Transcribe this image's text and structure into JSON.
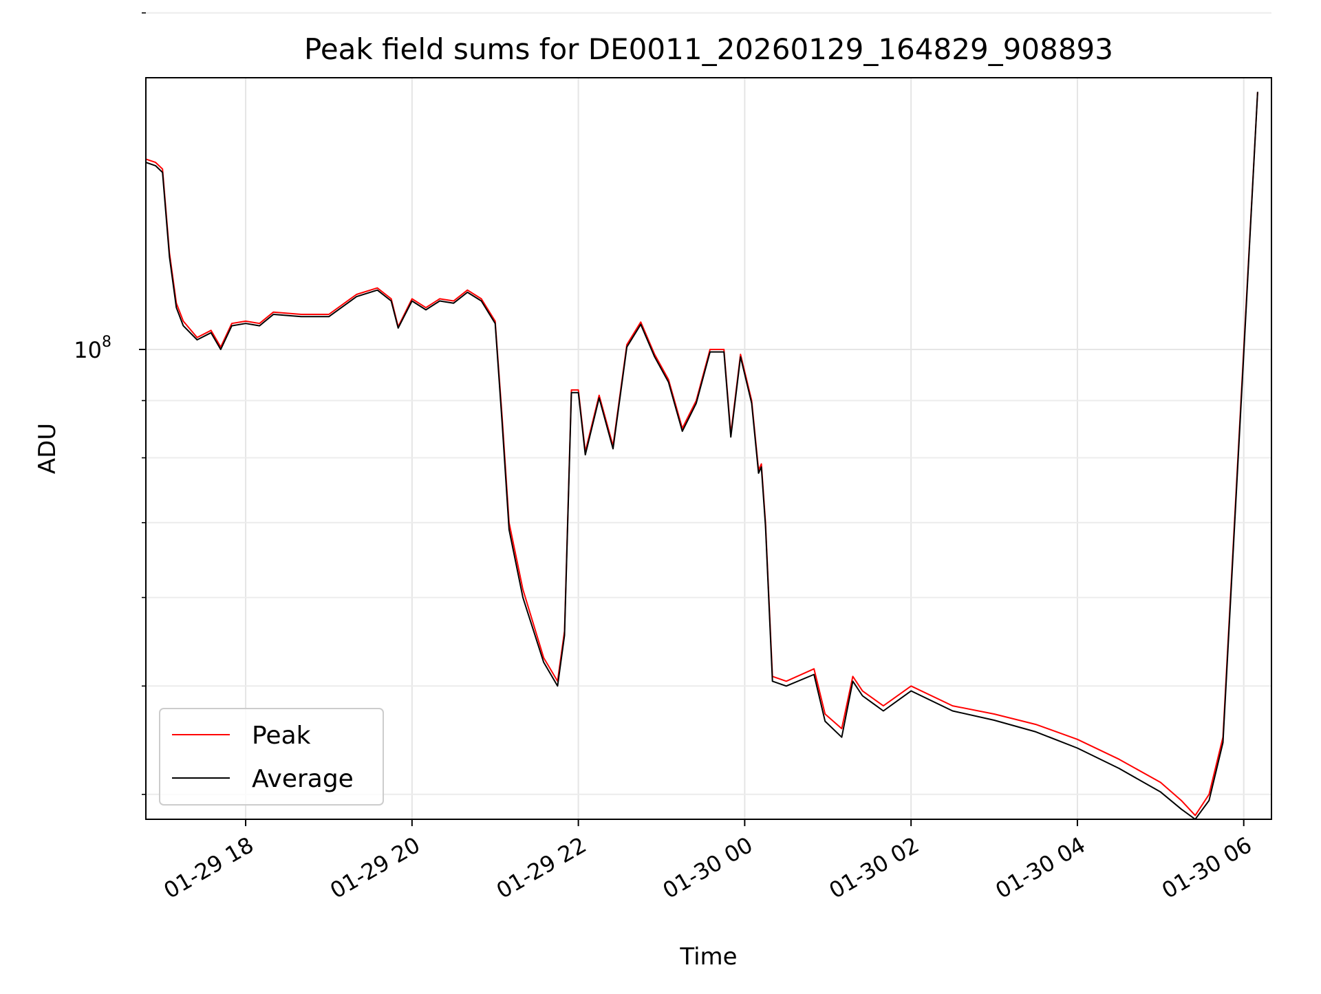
{
  "chart_data": {
    "type": "line",
    "title": "Peak field sums for DE0011_20260129_164829_908893",
    "xlabel": "Time",
    "ylabel": "ADU",
    "x_axis": "time",
    "y_scale": "log",
    "xlim": [
      "2026-01-29 16:48",
      "2026-01-30 06:20"
    ],
    "ylim": [
      38000000.0,
      175000000.0
    ],
    "x_ticks": [
      {
        "x": "2026-01-29 18:00",
        "label": "01-29 18"
      },
      {
        "x": "2026-01-29 20:00",
        "label": "01-29 20"
      },
      {
        "x": "2026-01-29 22:00",
        "label": "01-29 22"
      },
      {
        "x": "2026-01-30 00:00",
        "label": "01-30 00"
      },
      {
        "x": "2026-01-30 02:00",
        "label": "01-30 02"
      },
      {
        "x": "2026-01-30 04:00",
        "label": "01-30 04"
      },
      {
        "x": "2026-01-30 06:00",
        "label": "01-30 06"
      }
    ],
    "y_major_ticks": [
      {
        "y": 100000000,
        "label": "10",
        "exponent": "8"
      }
    ],
    "y_minor_ticks": [
      40000000,
      50000000,
      60000000,
      70000000,
      80000000,
      90000000,
      200000000
    ],
    "grid": true,
    "legend": {
      "position": "lower-left"
    },
    "series": [
      {
        "name": "Peak",
        "color": "#ff0000",
        "points": [
          [
            "2026-01-29 16:48",
            148000000.0
          ],
          [
            "2026-01-29 16:55",
            147000000.0
          ],
          [
            "2026-01-29 17:00",
            145000000.0
          ],
          [
            "2026-01-29 17:05",
            122000000.0
          ],
          [
            "2026-01-29 17:10",
            110000000.0
          ],
          [
            "2026-01-29 17:15",
            106000000.0
          ],
          [
            "2026-01-29 17:25",
            102500000.0
          ],
          [
            "2026-01-29 17:35",
            104000000.0
          ],
          [
            "2026-01-29 17:42",
            100500000.0
          ],
          [
            "2026-01-29 17:50",
            105500000.0
          ],
          [
            "2026-01-29 18:00",
            106000000.0
          ],
          [
            "2026-01-29 18:10",
            105500000.0
          ],
          [
            "2026-01-29 18:20",
            108000000.0
          ],
          [
            "2026-01-29 18:40",
            107500000.0
          ],
          [
            "2026-01-29 19:00",
            107500000.0
          ],
          [
            "2026-01-29 19:20",
            112000000.0
          ],
          [
            "2026-01-29 19:35",
            113500000.0
          ],
          [
            "2026-01-29 19:45",
            111000000.0
          ],
          [
            "2026-01-29 19:50",
            104800000.0
          ],
          [
            "2026-01-29 20:00",
            111000000.0
          ],
          [
            "2026-01-29 20:10",
            109000000.0
          ],
          [
            "2026-01-29 20:20",
            111000000.0
          ],
          [
            "2026-01-29 20:30",
            110500000.0
          ],
          [
            "2026-01-29 20:40",
            113000000.0
          ],
          [
            "2026-01-29 20:50",
            111000000.0
          ],
          [
            "2026-01-29 21:00",
            106000000.0
          ],
          [
            "2026-01-29 21:05",
            87000000.0
          ],
          [
            "2026-01-29 21:10",
            70000000.0
          ],
          [
            "2026-01-29 21:20",
            61000000.0
          ],
          [
            "2026-01-29 21:35",
            53000000.0
          ],
          [
            "2026-01-29 21:45",
            50500000.0
          ],
          [
            "2026-01-29 21:50",
            56000000.0
          ],
          [
            "2026-01-29 21:55",
            92000000.0
          ],
          [
            "2026-01-29 22:00",
            92000000.0
          ],
          [
            "2026-01-29 22:05",
            81000000.0
          ],
          [
            "2026-01-29 22:15",
            91000000.0
          ],
          [
            "2026-01-29 22:25",
            82000000.0
          ],
          [
            "2026-01-29 22:35",
            101000000.0
          ],
          [
            "2026-01-29 22:45",
            105800000.0
          ],
          [
            "2026-01-29 22:55",
            99000000.0
          ],
          [
            "2026-01-29 23:05",
            94000000.0
          ],
          [
            "2026-01-29 23:15",
            85000000.0
          ],
          [
            "2026-01-29 23:25",
            90000000.0
          ],
          [
            "2026-01-29 23:35",
            100000000.0
          ],
          [
            "2026-01-29 23:45",
            100000000.0
          ],
          [
            "2026-01-29 23:50",
            84000000.0
          ],
          [
            "2026-01-29 23:57",
            99000000.0
          ],
          [
            "2026-01-30 00:05",
            90000000.0
          ],
          [
            "2026-01-30 00:10",
            78000000.0
          ],
          [
            "2026-01-30 00:12",
            79000000.0
          ],
          [
            "2026-01-30 00:15",
            70000000.0
          ],
          [
            "2026-01-30 00:20",
            51000000.0
          ],
          [
            "2026-01-30 00:30",
            50500000.0
          ],
          [
            "2026-01-30 00:50",
            51800000.0
          ],
          [
            "2026-01-30 00:58",
            47200000.0
          ],
          [
            "2026-01-30 01:10",
            45800000.0
          ],
          [
            "2026-01-30 01:18",
            51000000.0
          ],
          [
            "2026-01-30 01:25",
            49500000.0
          ],
          [
            "2026-01-30 01:40",
            48000000.0
          ],
          [
            "2026-01-30 02:00",
            50000000.0
          ],
          [
            "2026-01-30 02:30",
            48000000.0
          ],
          [
            "2026-01-30 03:00",
            47200000.0
          ],
          [
            "2026-01-30 03:30",
            46200000.0
          ],
          [
            "2026-01-30 04:00",
            44800000.0
          ],
          [
            "2026-01-30 04:30",
            43000000.0
          ],
          [
            "2026-01-30 05:00",
            41000000.0
          ],
          [
            "2026-01-30 05:15",
            39500000.0
          ],
          [
            "2026-01-30 05:25",
            38300000.0
          ],
          [
            "2026-01-30 05:35",
            40000000.0
          ],
          [
            "2026-01-30 05:45",
            45000000.0
          ],
          [
            "2026-01-30 06:00",
            100000000.0
          ],
          [
            "2026-01-30 06:10",
            170000000.0
          ]
        ]
      },
      {
        "name": "Average",
        "color": "#000000",
        "points": [
          [
            "2026-01-29 16:48",
            147000000.0
          ],
          [
            "2026-01-29 16:55",
            146000000.0
          ],
          [
            "2026-01-29 17:00",
            144000000.0
          ],
          [
            "2026-01-29 17:05",
            121000000.0
          ],
          [
            "2026-01-29 17:10",
            109000000.0
          ],
          [
            "2026-01-29 17:15",
            105000000.0
          ],
          [
            "2026-01-29 17:25",
            102000000.0
          ],
          [
            "2026-01-29 17:35",
            103500000.0
          ],
          [
            "2026-01-29 17:42",
            100000000.0
          ],
          [
            "2026-01-29 17:50",
            105000000.0
          ],
          [
            "2026-01-29 18:00",
            105500000.0
          ],
          [
            "2026-01-29 18:10",
            105000000.0
          ],
          [
            "2026-01-29 18:20",
            107500000.0
          ],
          [
            "2026-01-29 18:40",
            107000000.0
          ],
          [
            "2026-01-29 19:00",
            107000000.0
          ],
          [
            "2026-01-29 19:20",
            111500000.0
          ],
          [
            "2026-01-29 19:35",
            113000000.0
          ],
          [
            "2026-01-29 19:45",
            110500000.0
          ],
          [
            "2026-01-29 19:50",
            104500000.0
          ],
          [
            "2026-01-29 20:00",
            110500000.0
          ],
          [
            "2026-01-29 20:10",
            108500000.0
          ],
          [
            "2026-01-29 20:20",
            110500000.0
          ],
          [
            "2026-01-29 20:30",
            110000000.0
          ],
          [
            "2026-01-29 20:40",
            112500000.0
          ],
          [
            "2026-01-29 20:50",
            110500000.0
          ],
          [
            "2026-01-29 21:00",
            105500000.0
          ],
          [
            "2026-01-29 21:05",
            86000000.0
          ],
          [
            "2026-01-29 21:10",
            69000000.0
          ],
          [
            "2026-01-29 21:20",
            60000000.0
          ],
          [
            "2026-01-29 21:35",
            52500000.0
          ],
          [
            "2026-01-29 21:45",
            50000000.0
          ],
          [
            "2026-01-29 21:50",
            55500000.0
          ],
          [
            "2026-01-29 21:55",
            91500000.0
          ],
          [
            "2026-01-29 22:00",
            91500000.0
          ],
          [
            "2026-01-29 22:05",
            80500000.0
          ],
          [
            "2026-01-29 22:15",
            90500000.0
          ],
          [
            "2026-01-29 22:25",
            81500000.0
          ],
          [
            "2026-01-29 22:35",
            100500000.0
          ],
          [
            "2026-01-29 22:45",
            105300000.0
          ],
          [
            "2026-01-29 22:55",
            98500000.0
          ],
          [
            "2026-01-29 23:05",
            93500000.0
          ],
          [
            "2026-01-29 23:15",
            84500000.0
          ],
          [
            "2026-01-29 23:25",
            89500000.0
          ],
          [
            "2026-01-29 23:35",
            99500000.0
          ],
          [
            "2026-01-29 23:45",
            99500000.0
          ],
          [
            "2026-01-29 23:50",
            83500000.0
          ],
          [
            "2026-01-29 23:57",
            98500000.0
          ],
          [
            "2026-01-30 00:05",
            89500000.0
          ],
          [
            "2026-01-30 00:10",
            77500000.0
          ],
          [
            "2026-01-30 00:12",
            78500000.0
          ],
          [
            "2026-01-30 00:15",
            69500000.0
          ],
          [
            "2026-01-30 00:20",
            50500000.0
          ],
          [
            "2026-01-30 00:30",
            50000000.0
          ],
          [
            "2026-01-30 00:50",
            51200000.0
          ],
          [
            "2026-01-30 00:58",
            46500000.0
          ],
          [
            "2026-01-30 01:10",
            45000000.0
          ],
          [
            "2026-01-30 01:18",
            50500000.0
          ],
          [
            "2026-01-30 01:25",
            49000000.0
          ],
          [
            "2026-01-30 01:40",
            47500000.0
          ],
          [
            "2026-01-30 02:00",
            49500000.0
          ],
          [
            "2026-01-30 02:30",
            47500000.0
          ],
          [
            "2026-01-30 03:00",
            46600000.0
          ],
          [
            "2026-01-30 03:30",
            45500000.0
          ],
          [
            "2026-01-30 04:00",
            44000000.0
          ],
          [
            "2026-01-30 04:30",
            42200000.0
          ],
          [
            "2026-01-30 05:00",
            40200000.0
          ],
          [
            "2026-01-30 05:15",
            38800000.0
          ],
          [
            "2026-01-30 05:25",
            38000000.0
          ],
          [
            "2026-01-30 05:35",
            39500000.0
          ],
          [
            "2026-01-30 05:45",
            44500000.0
          ],
          [
            "2026-01-30 06:00",
            99000000.0
          ],
          [
            "2026-01-30 06:10",
            170000000.0
          ]
        ]
      }
    ]
  }
}
